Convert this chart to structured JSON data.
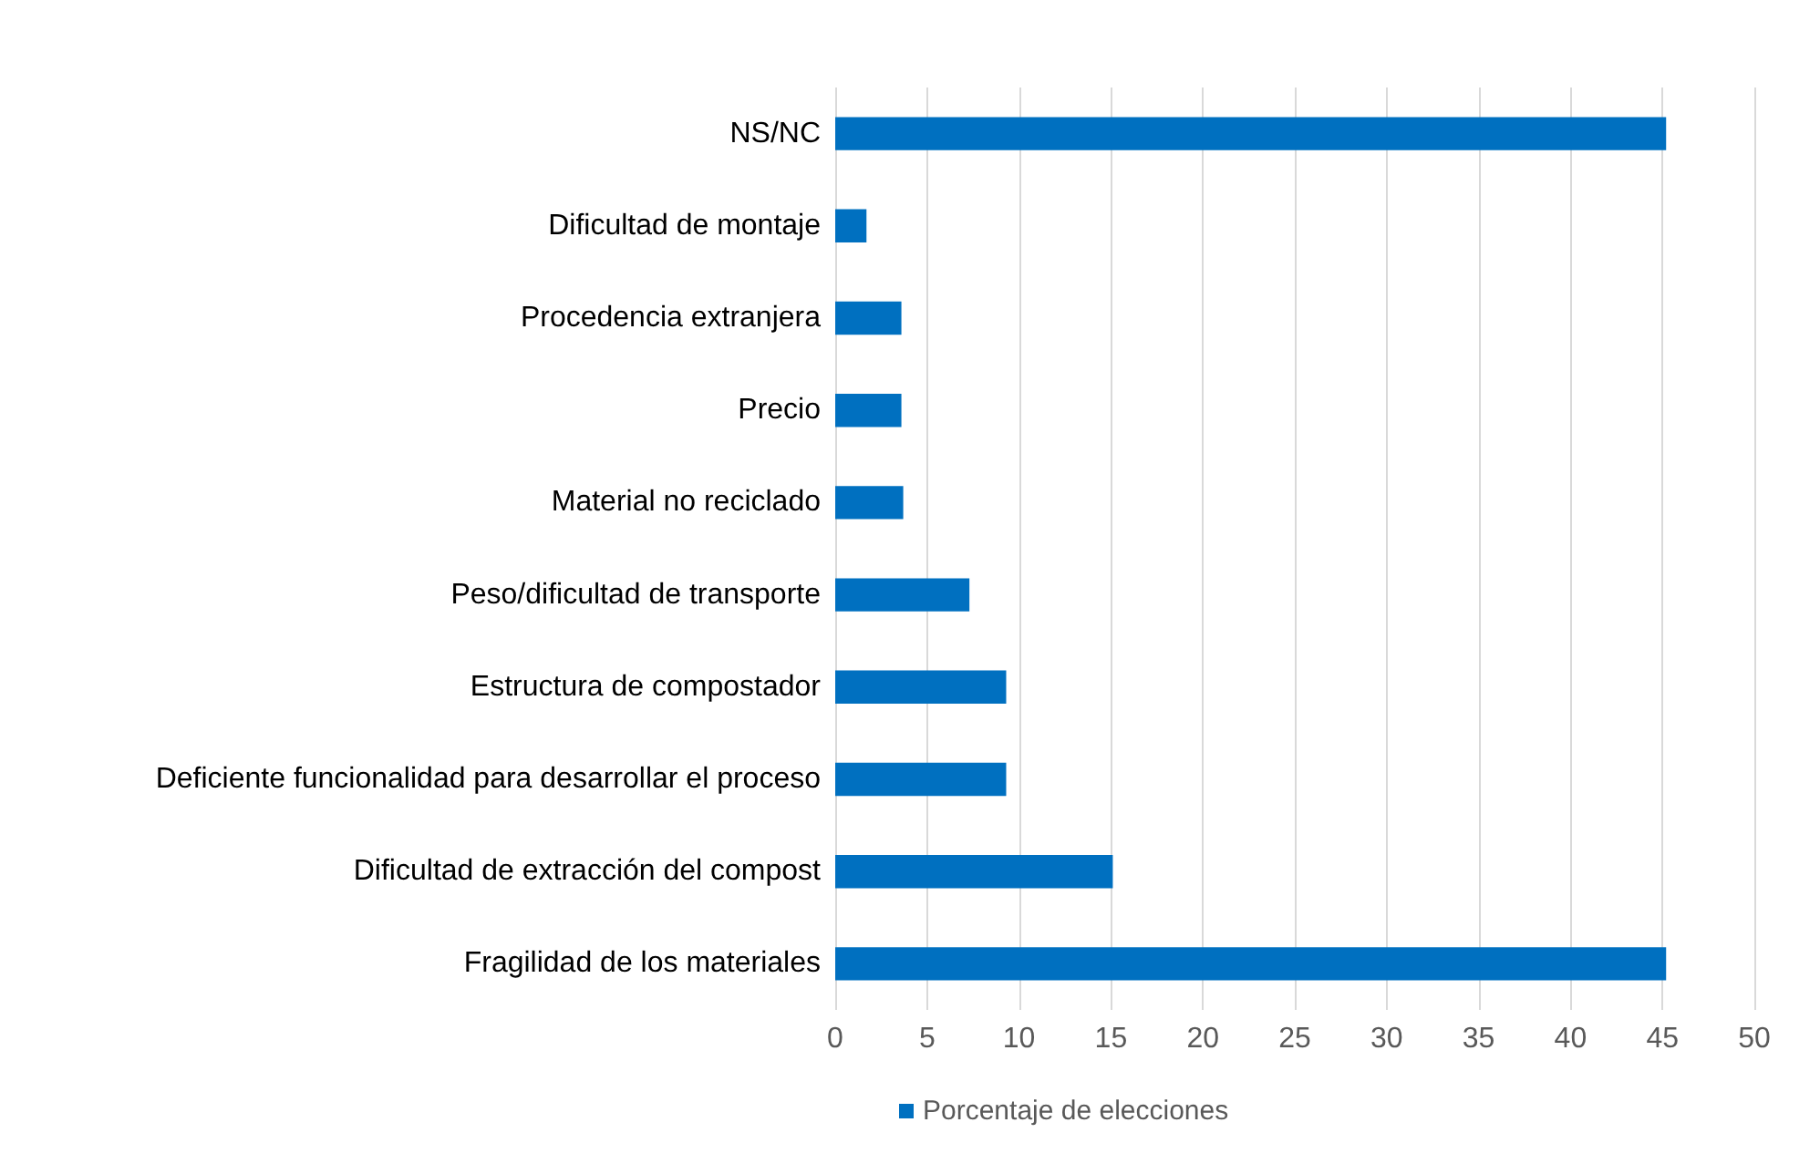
{
  "chart_data": {
    "type": "bar",
    "orientation": "horizontal",
    "categories": [
      "NS/NC",
      "Dificultad de montaje",
      "Procedencia extranjera",
      "Precio",
      "Material no reciclado",
      "Peso/dificultad de transporte",
      "Estructura de compostador",
      "Deficiente funcionalidad para desarrollar el proceso",
      "Dificultad de extracción del compost",
      "Fragilidad de los materiales"
    ],
    "series": [
      {
        "name": "Porcentaje de elecciones",
        "color": "#0070c0",
        "values": [
          45.2,
          1.7,
          3.6,
          3.6,
          3.7,
          7.3,
          9.3,
          9.3,
          15.1,
          45.2
        ]
      }
    ],
    "xlim": [
      0,
      50
    ],
    "xticks": [
      0,
      5,
      10,
      15,
      20,
      25,
      30,
      35,
      40,
      45,
      50
    ],
    "grid": "x",
    "legend": "bottom"
  }
}
